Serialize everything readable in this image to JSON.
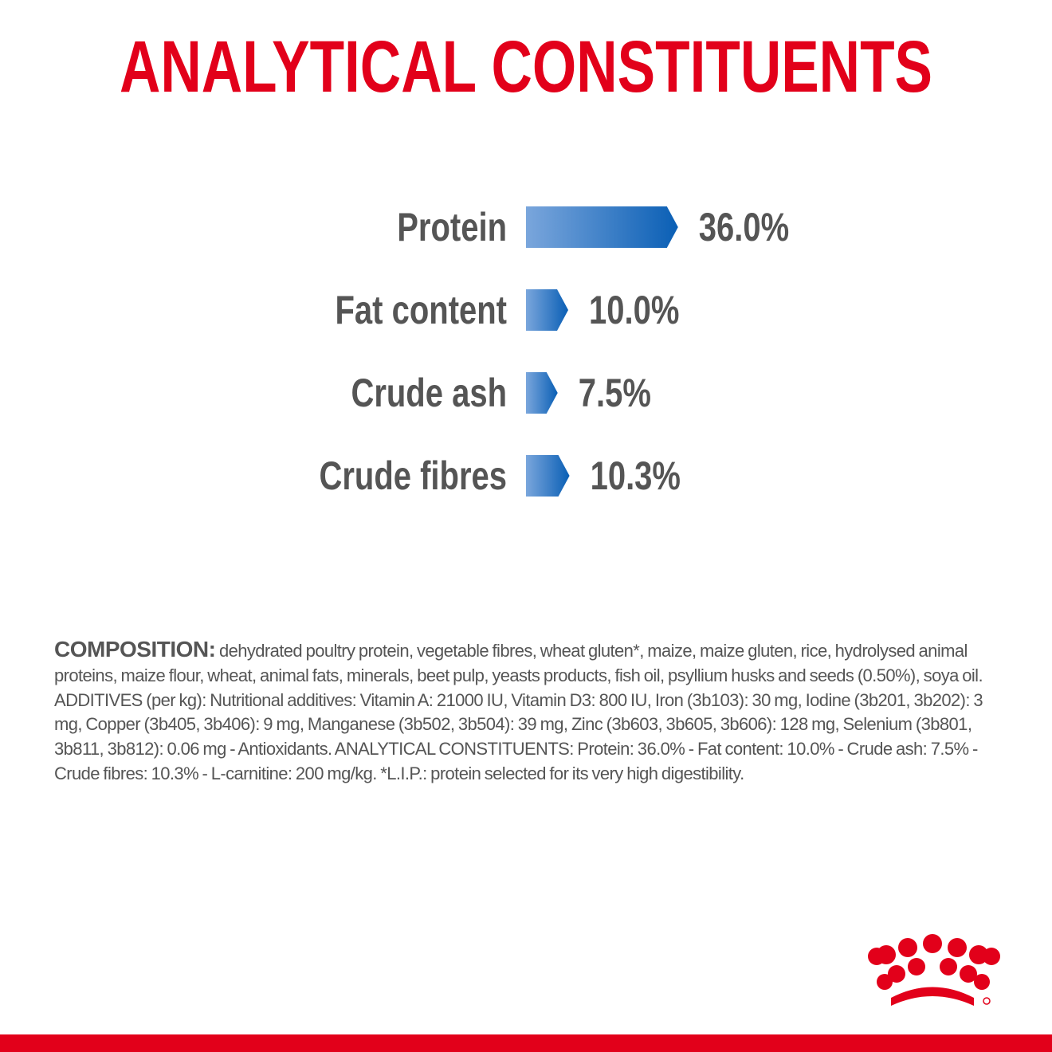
{
  "chart_data": {
    "type": "bar",
    "orientation": "horizontal",
    "title": "ANALYTICAL CONSTITUENTS",
    "categories": [
      "Protein",
      "Fat content",
      "Crude ash",
      "Crude fibres"
    ],
    "values": [
      36.0,
      10.0,
      7.5,
      10.3
    ],
    "value_labels": [
      "36.0%",
      "10.0%",
      "7.5%",
      "10.3%"
    ]
  },
  "composition": {
    "label": "COMPOSITION:",
    "text": "dehydrated poultry protein, vegetable fibres, wheat gluten*, maize, maize gluten, rice, hydrolysed animal proteins, maize flour, wheat, animal fats, minerals, beet pulp, yeasts products, fish oil, psyllium husks and seeds (0.50%), soya oil. ADDITIVES (per kg): Nutritional additives: Vitamin A: 21000 IU, Vitamin D3: 800 IU, Iron (3b103): 30 mg, Iodine (3b201, 3b202): 3 mg, Copper (3b405, 3b406): 9 mg, Manganese (3b502, 3b504): 39 mg, Zinc (3b603, 3b605, 3b606): 128 mg, Selenium (3b801, 3b811, 3b812): 0.06 mg - Antioxidants. ANALYTICAL CONSTITUENTS: Protein: 36.0% - Fat content: 10.0% - Crude ash: 7.5% - Crude fibres: 10.3% - L-carnitine: 200 mg/kg. *L.I.P.: protein selected for its very high digestibility."
  }
}
